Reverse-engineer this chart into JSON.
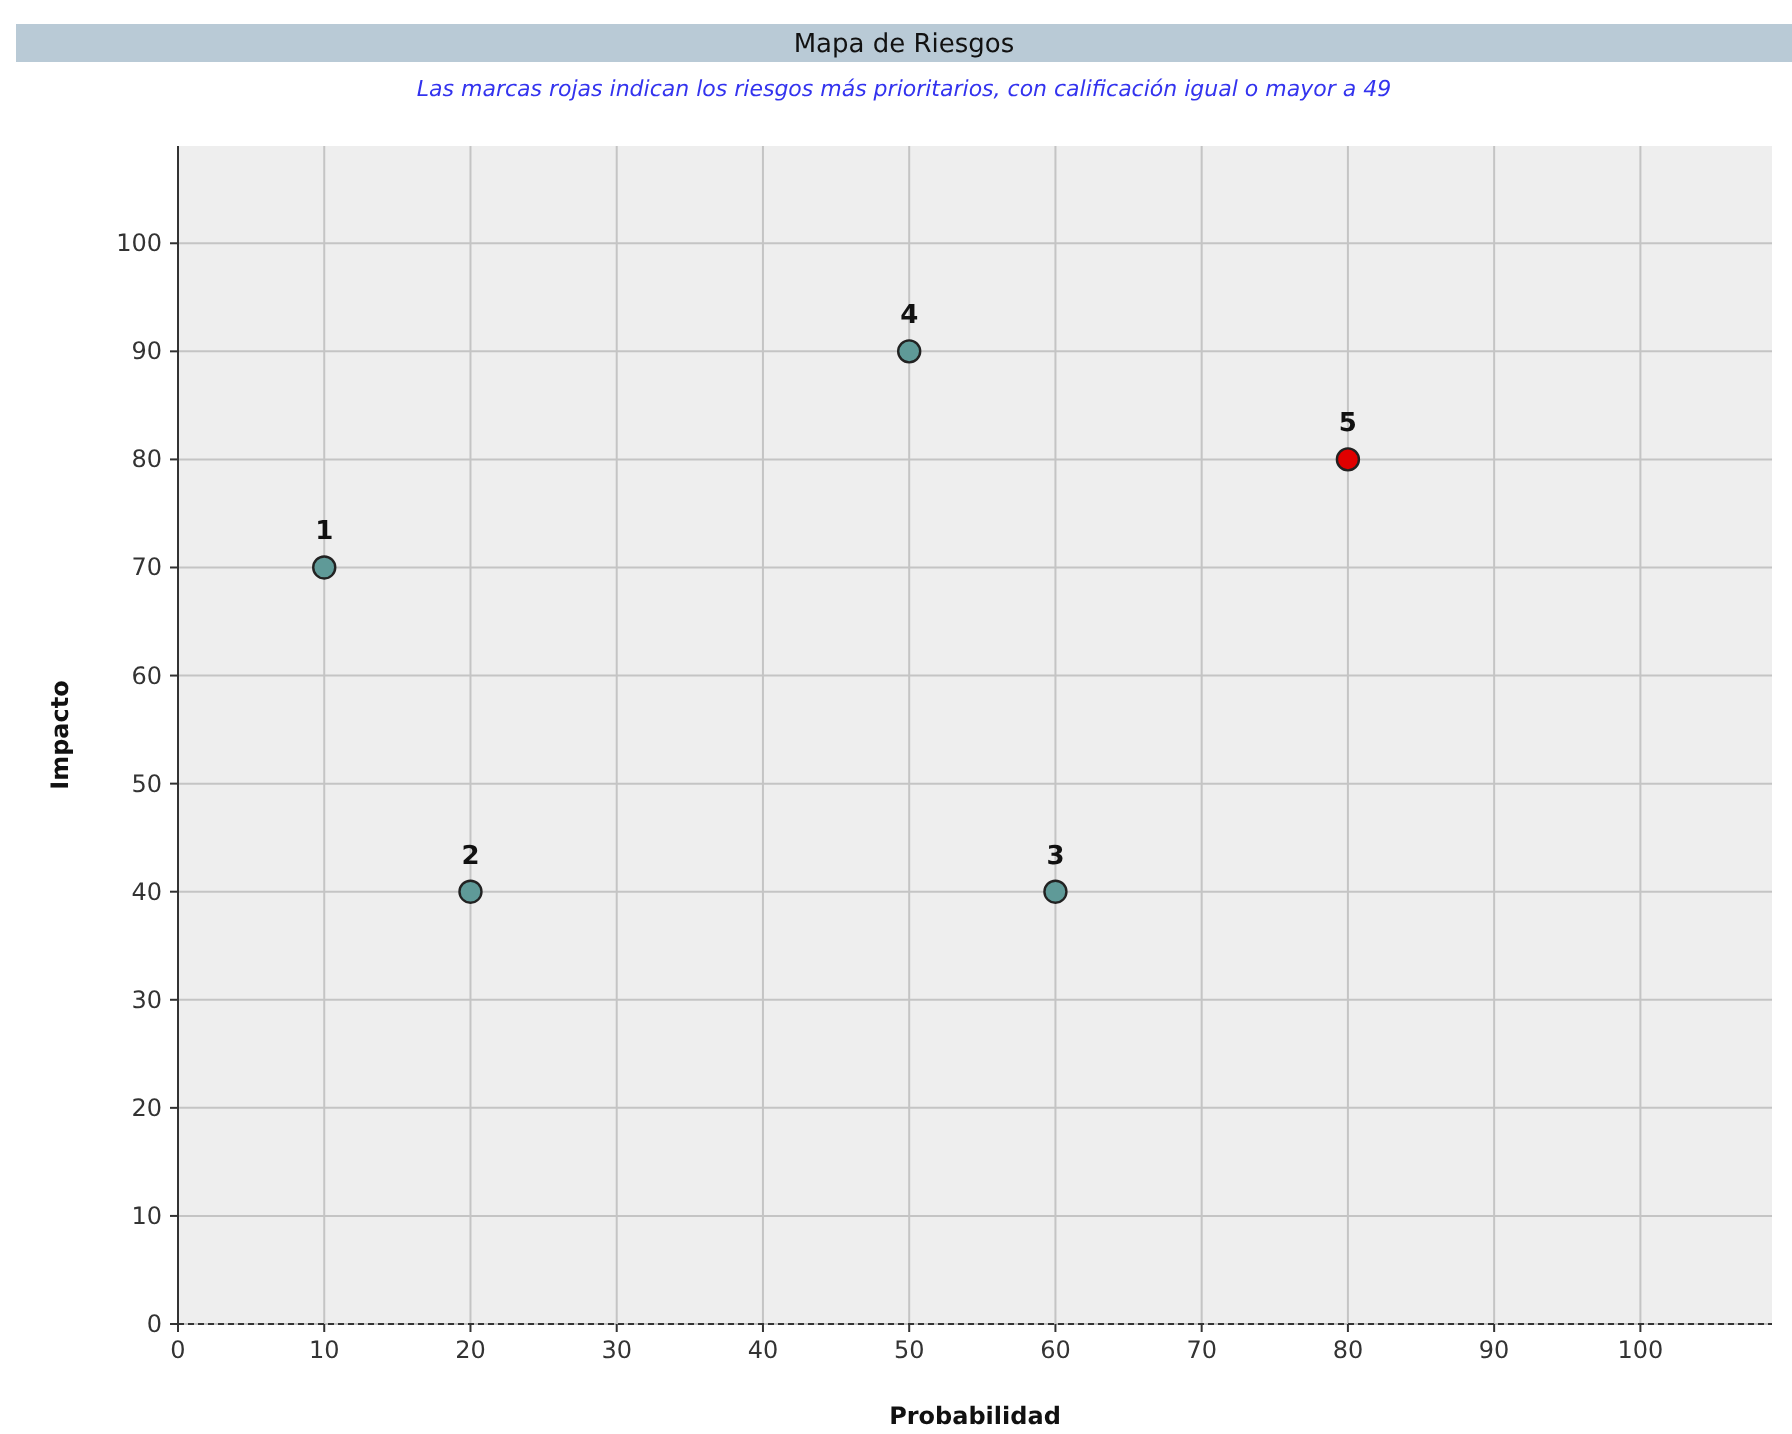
{
  "chart_data": {
    "type": "scatter",
    "title": "Mapa de Riesgos",
    "subtitle": "Las marcas rojas indican los riesgos más prioritarios, con calificación igual o mayor a 49",
    "xlabel": "Probabilidad",
    "ylabel": "Impacto",
    "x": [
      10,
      20,
      60,
      50,
      80
    ],
    "values": [
      70,
      40,
      40,
      90,
      80
    ],
    "colors": [
      "#5f9a98",
      "#5f9a98",
      "#5f9a98",
      "#5f9a98",
      "#e00000"
    ],
    "annotations": [
      {
        "text": "1",
        "x": 10,
        "y": 70
      },
      {
        "text": "2",
        "x": 20,
        "y": 40
      },
      {
        "text": "3",
        "x": 60,
        "y": 40
      },
      {
        "text": "4",
        "x": 50,
        "y": 90
      },
      {
        "text": "5",
        "x": 80,
        "y": 80
      }
    ],
    "xlim": [
      0,
      109
    ],
    "ylim": [
      0,
      109
    ],
    "xticks": [
      0,
      10,
      20,
      30,
      40,
      50,
      60,
      70,
      80,
      90,
      100
    ],
    "yticks": [
      0,
      10,
      20,
      30,
      40,
      50,
      60,
      70,
      80,
      90,
      100
    ],
    "grid": true,
    "marker": "circle"
  }
}
